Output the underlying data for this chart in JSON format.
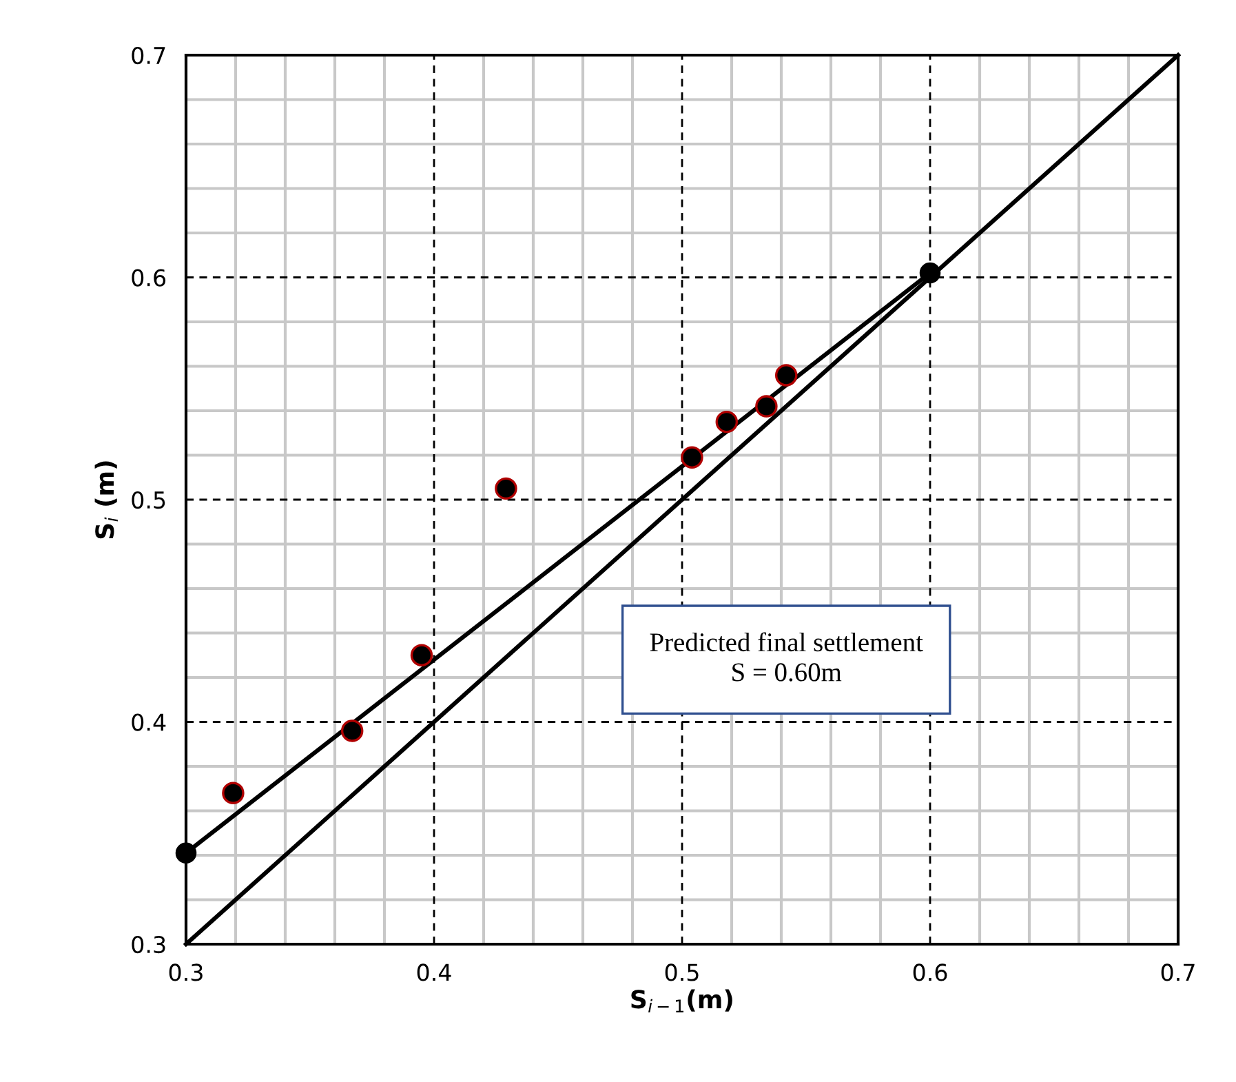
{
  "chart_data": {
    "type": "scatter",
    "xlabel": "S$_{i−1}$(m)",
    "ylabel": "S$_{i}$ (m)",
    "xlim": [
      0.3,
      0.7
    ],
    "ylim": [
      0.3,
      0.7
    ],
    "xticks": [
      0.3,
      {
        "value": 0.32,
        "label": null
      },
      {
        "value": 0.34,
        "label": null
      },
      {
        "value": 0.36,
        "label": null
      },
      {
        "value": 0.38,
        "label": null
      },
      0.4,
      {
        "value": 0.42,
        "label": null
      },
      {
        "value": 0.44,
        "label": null
      },
      {
        "value": 0.46,
        "label": null
      },
      {
        "value": 0.48,
        "label": null
      },
      0.5,
      {
        "value": 0.52,
        "label": null
      },
      {
        "value": 0.54,
        "label": null
      },
      {
        "value": 0.56,
        "label": null
      },
      {
        "value": 0.58,
        "label": null
      },
      0.6,
      {
        "value": 0.62,
        "label": null
      },
      {
        "value": 0.64,
        "label": null
      },
      {
        "value": 0.66,
        "label": null
      },
      {
        "value": 0.68,
        "label": null
      },
      0.7
    ],
    "yticks": [
      0.3,
      {
        "value": 0.32,
        "label": null
      },
      {
        "value": 0.34,
        "label": null
      },
      {
        "value": 0.36,
        "label": null
      },
      {
        "value": 0.38,
        "label": null
      },
      0.4,
      {
        "value": 0.42,
        "label": null
      },
      {
        "value": 0.44,
        "label": null
      },
      {
        "value": 0.46,
        "label": null
      },
      {
        "value": 0.48,
        "label": null
      },
      0.5,
      {
        "value": 0.52,
        "label": null
      },
      {
        "value": 0.54,
        "label": null
      },
      {
        "value": 0.56,
        "label": null
      },
      {
        "value": 0.58,
        "label": null
      },
      0.6,
      {
        "value": 0.62,
        "label": null
      },
      {
        "value": 0.64,
        "label": null
      },
      {
        "value": 0.66,
        "label": null
      },
      {
        "value": 0.68,
        "label": null
      },
      0.7
    ],
    "grid": true,
    "marker": "circle",
    "series": [
      {
        "color": "#000000",
        "x": [
          0.319,
          0.367,
          0.395,
          0.429,
          0.504,
          0.518,
          0.534,
          0.542
        ],
        "values": [
          0.368,
          0.396,
          0.43,
          0.505,
          0.519,
          0.535,
          0.542,
          0.556
        ]
      },
      {
        "type": "line",
        "color": "#000000",
        "marker": "circle",
        "x": [
          0.3,
          0.6
        ],
        "values": [
          0.341,
          0.602
        ]
      },
      {
        "type": "line",
        "color": "#000000",
        "marker": "none",
        "x": [
          0.3,
          0.7
        ],
        "values": [
          0.3,
          0.7
        ]
      }
    ],
    "annotations": [
      "Predicted final settlement\nS = 0.60m"
    ]
  }
}
